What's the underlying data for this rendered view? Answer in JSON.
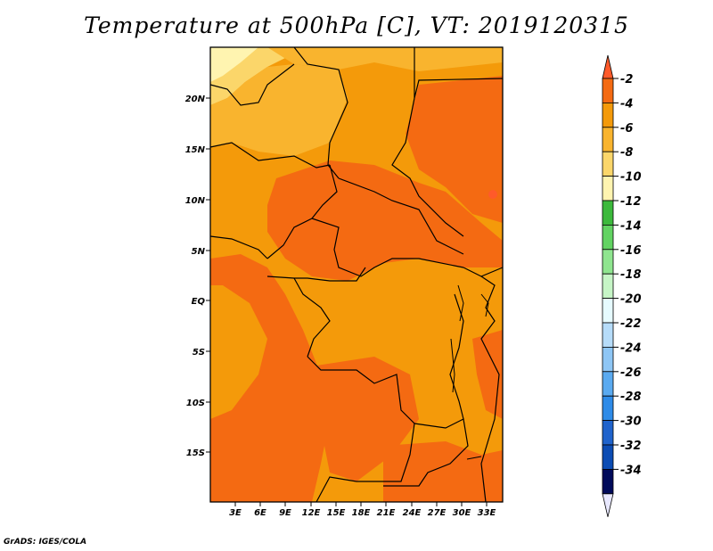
{
  "title": "Temperature at 500hPa [C], VT: 2019120315",
  "footer": "GrADS: IGES/COLA",
  "map": {
    "lat_ticks": [
      "20N",
      "15N",
      "10N",
      "5N",
      "EQ",
      "5S",
      "10S",
      "15S"
    ],
    "lon_ticks": [
      "3E",
      "6E",
      "9E",
      "12E",
      "15E",
      "18E",
      "21E",
      "24E",
      "27E",
      "30E",
      "33E"
    ]
  },
  "colorbar": {
    "labels": [
      "-2",
      "-4",
      "-6",
      "-8",
      "-10",
      "-12",
      "-14",
      "-16",
      "-18",
      "-20",
      "-22",
      "-24",
      "-26",
      "-28",
      "-30",
      "-32",
      "-34"
    ],
    "colors": [
      "#ff5a2a",
      "#f46a12",
      "#f49a0a",
      "#f9b42e",
      "#fbd66a",
      "#fff4b0",
      "#3cb93c",
      "#62d362",
      "#8fe58f",
      "#c6f5c6",
      "#e6fbff",
      "#b6dcf9",
      "#8ec6f5",
      "#5aaaf0",
      "#2e8be8",
      "#1f63cc",
      "#0c4cb4",
      "#000a5a",
      "#e8e8ff"
    ]
  },
  "temperature_field": {
    "colors": {
      "warmest": "#f46a12",
      "warm": "#f49a0a",
      "moderate": "#f9b42e",
      "cool": "#fbd66a",
      "coolest": "#fff4b0"
    }
  }
}
